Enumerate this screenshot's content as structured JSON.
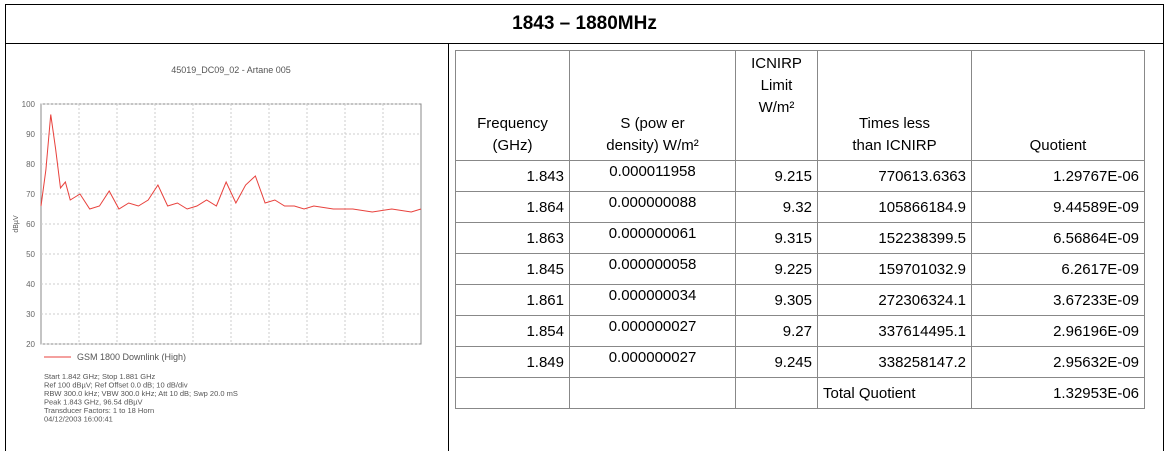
{
  "title": "1843 – 1880MHz",
  "spectrum": {
    "type": "line",
    "title": "45019_DC09_02 - Artane 005",
    "y_label": "dBµV",
    "x": [
      1.842,
      1.8425,
      1.843,
      1.8435,
      1.844,
      1.8445,
      1.845,
      1.846,
      1.847,
      1.848,
      1.849,
      1.85,
      1.851,
      1.852,
      1.853,
      1.854,
      1.855,
      1.856,
      1.857,
      1.858,
      1.859,
      1.86,
      1.861,
      1.862,
      1.863,
      1.864,
      1.865,
      1.866,
      1.867,
      1.868,
      1.869,
      1.87,
      1.872,
      1.874,
      1.876,
      1.878,
      1.88,
      1.881
    ],
    "series": [
      {
        "name": "GSM 1800 Downlink (High)",
        "color": "#e8413c",
        "values": [
          66,
          78,
          96.5,
          85,
          72,
          74,
          68,
          70,
          65,
          66,
          71,
          65,
          67,
          66,
          68,
          73,
          66,
          67,
          65,
          66,
          68,
          66,
          74,
          67,
          73,
          76,
          67,
          68,
          66,
          66,
          65,
          66,
          65,
          65,
          64,
          65,
          64,
          65
        ]
      }
    ],
    "xlim": [
      1.842,
      1.881
    ],
    "ylim": [
      20,
      100
    ],
    "yticks": [
      20,
      30,
      40,
      50,
      60,
      70,
      80,
      90,
      100
    ],
    "grid": true,
    "notes": [
      "Start 1.842 GHz; Stop 1.881 GHz",
      "Ref 100 dBµV; Ref Offset 0.0 dB; 10 dB/div",
      "RBW 300.0 kHz; VBW 300.0 kHz; Att 10 dB; Swp 20.0 mS",
      "Peak 1.843 GHz, 96.54 dBµV",
      "Transducer Factors: 1 to 18 Horn",
      "04/12/2003 16:00:41"
    ]
  },
  "table": {
    "header": [
      [
        "Frequency",
        "(GHz)"
      ],
      [
        "S (pow er",
        "density) W/m²"
      ],
      [
        "ICNIRP",
        "Limit",
        "W/m²"
      ],
      [
        "Times less",
        "than ICNIRP"
      ],
      [
        "Quotient"
      ]
    ],
    "rows": [
      [
        "1.843",
        "0.000011958",
        "9.215",
        "770613.6363",
        "1.29767E-06"
      ],
      [
        "1.864",
        "0.000000088",
        "9.32",
        "105866184.9",
        "9.44589E-09"
      ],
      [
        "1.863",
        "0.000000061",
        "9.315",
        "152238399.5",
        "6.56864E-09"
      ],
      [
        "1.845",
        "0.000000058",
        "9.225",
        "159701032.9",
        "6.2617E-09"
      ],
      [
        "1.861",
        "0.000000034",
        "9.305",
        "272306324.1",
        "3.67233E-09"
      ],
      [
        "1.854",
        "0.000000027",
        "9.27",
        "337614495.1",
        "2.96196E-09"
      ],
      [
        "1.849",
        "0.000000027",
        "9.245",
        "338258147.2",
        "2.95632E-09"
      ]
    ],
    "total": {
      "label": "Total Quotient",
      "value": "1.32953E-06"
    }
  }
}
